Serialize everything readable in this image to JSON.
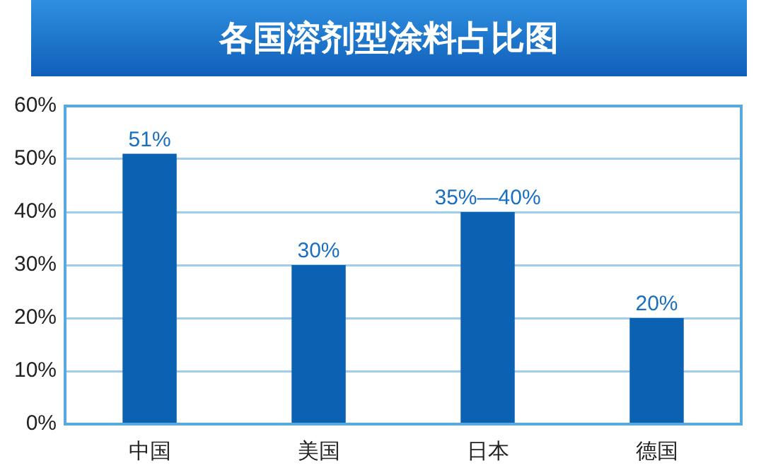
{
  "chart_data": {
    "type": "bar",
    "title": "各国溶剂型涂料占比图",
    "categories": [
      "中国",
      "美国",
      "日本",
      "德国"
    ],
    "values": [
      51,
      30,
      40,
      20
    ],
    "color": "#0b62b3",
    "value_labels": [
      "51%",
      "30%",
      "35%—40%",
      "20%"
    ],
    "ylim": [
      0,
      60
    ],
    "yticks": [
      {
        "value": 0,
        "label": "0%"
      },
      {
        "value": 10,
        "label": "10%"
      },
      {
        "value": 20,
        "label": "20%"
      },
      {
        "value": 30,
        "label": "30%"
      },
      {
        "value": 40,
        "label": "40%"
      },
      {
        "value": 50,
        "label": "50%"
      },
      {
        "value": 60,
        "label": "60%"
      }
    ],
    "grid": "y",
    "legend": false
  }
}
